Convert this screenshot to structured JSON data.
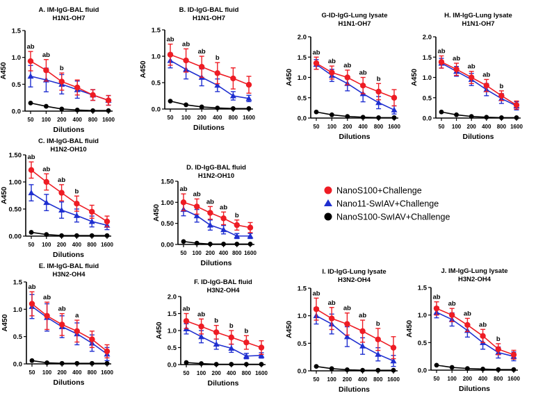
{
  "colors": {
    "red": "#ee1c24",
    "blue": "#1f2fd0",
    "black": "#000000"
  },
  "legend": {
    "entries": [
      {
        "label": "NanoS100+Challenge",
        "color": "#ee1c24",
        "marker": "circle"
      },
      {
        "label": "Nano11-SwIAV+Challenge",
        "color": "#1f2fd0",
        "marker": "triangle"
      },
      {
        "label": "NanoS100-SwIAV+Challenge",
        "color": "#000000",
        "marker": "circle"
      }
    ]
  },
  "chart_data": [
    {
      "type": "line",
      "title": "A. IM-IgG-BAL fluid",
      "subtitle": "H1N1-OH7",
      "xlabel": "Dilutions",
      "ylabel": "A450",
      "categories": [
        "50",
        "100",
        "200",
        "400",
        "800",
        "1600"
      ],
      "ylim": [
        0,
        1.5
      ],
      "yticks": [
        "0.0",
        "0.5",
        "1.0",
        "1.5"
      ],
      "series": [
        {
          "name": "NanoS100+Challenge",
          "values": [
            0.93,
            0.76,
            0.55,
            0.44,
            0.3,
            0.2
          ],
          "errors": [
            0.18,
            0.2,
            0.16,
            0.14,
            0.1,
            0.09
          ]
        },
        {
          "name": "Nano11-SwIAV+Challenge",
          "values": [
            0.65,
            0.58,
            0.5,
            0.4,
            0.3,
            0.2
          ],
          "errors": [
            0.2,
            0.22,
            0.18,
            0.16,
            0.1,
            0.09
          ]
        },
        {
          "name": "NanoS100-SwIAV+Challenge",
          "values": [
            0.15,
            0.09,
            0.04,
            0.02,
            0.01,
            0.01
          ],
          "errors": [
            0,
            0,
            0,
            0,
            0,
            0
          ]
        }
      ],
      "annotations": [
        {
          "index": 0,
          "text": "ab"
        },
        {
          "index": 1,
          "text": "ab"
        },
        {
          "index": 2,
          "text": "b"
        }
      ]
    },
    {
      "type": "line",
      "title": "B. ID-IgG-BAL fluid",
      "subtitle": "H1N1-OH7",
      "xlabel": "Dilutions",
      "ylabel": "A450",
      "categories": [
        "50",
        "100",
        "200",
        "400",
        "800",
        "1600"
      ],
      "ylim": [
        0,
        1.5
      ],
      "yticks": [
        "0.0",
        "0.5",
        "1.0",
        "1.5"
      ],
      "series": [
        {
          "name": "NanoS100+Challenge",
          "values": [
            1.03,
            0.92,
            0.8,
            0.68,
            0.58,
            0.46
          ],
          "errors": [
            0.2,
            0.22,
            0.2,
            0.2,
            0.2,
            0.16
          ]
        },
        {
          "name": "Nano11-SwIAV+Challenge",
          "values": [
            0.92,
            0.75,
            0.6,
            0.45,
            0.25,
            0.2
          ],
          "errors": [
            0.14,
            0.18,
            0.16,
            0.12,
            0.08,
            0.06
          ]
        },
        {
          "name": "NanoS100-SwIAV+Challenge",
          "values": [
            0.15,
            0.08,
            0.04,
            0.02,
            0.01,
            0.01
          ],
          "errors": [
            0,
            0,
            0,
            0,
            0,
            0
          ]
        }
      ],
      "annotations": [
        {
          "index": 0,
          "text": "ab"
        },
        {
          "index": 1,
          "text": "ab"
        },
        {
          "index": 2,
          "text": "ab"
        },
        {
          "index": 3,
          "text": "b"
        }
      ]
    },
    {
      "type": "line",
      "title": "G-ID-IgG-Lung lysate",
      "subtitle": "H1N1-OH7",
      "xlabel": "Dilutions",
      "ylabel": "A450",
      "categories": [
        "50",
        "100",
        "200",
        "400",
        "800",
        "1600"
      ],
      "ylim": [
        0,
        2.0
      ],
      "yticks": [
        "0.0",
        "0.5",
        "1.0",
        "1.5",
        "2.0"
      ],
      "series": [
        {
          "name": "NanoS100+Challenge",
          "values": [
            1.35,
            1.12,
            1.0,
            0.8,
            0.65,
            0.5
          ],
          "errors": [
            0.15,
            0.16,
            0.18,
            0.2,
            0.2,
            0.2
          ]
        },
        {
          "name": "Nano11-SwIAV+Challenge",
          "values": [
            1.32,
            1.05,
            0.85,
            0.6,
            0.38,
            0.2
          ],
          "errors": [
            0.12,
            0.15,
            0.18,
            0.2,
            0.15,
            0.1
          ]
        },
        {
          "name": "NanoS100-SwIAV+Challenge",
          "values": [
            0.15,
            0.08,
            0.04,
            0.02,
            0.01,
            0.01
          ],
          "errors": [
            0,
            0,
            0,
            0,
            0,
            0
          ]
        }
      ],
      "annotations": [
        {
          "index": 0,
          "text": "ab"
        },
        {
          "index": 1,
          "text": "ab"
        },
        {
          "index": 2,
          "text": "ab"
        },
        {
          "index": 3,
          "text": "ab"
        },
        {
          "index": 4,
          "text": "b"
        }
      ]
    },
    {
      "type": "line",
      "title": "H. IM-IgG-Lung lysate",
      "subtitle": "H1N1-OH7",
      "xlabel": "Dilutions",
      "ylabel": "A450",
      "categories": [
        "50",
        "100",
        "200",
        "400",
        "800",
        "1600"
      ],
      "ylim": [
        0,
        2.0
      ],
      "yticks": [
        "0.0",
        "0.5",
        "1.0",
        "1.5",
        "2.0"
      ],
      "series": [
        {
          "name": "NanoS100+Challenge",
          "values": [
            1.38,
            1.2,
            1.0,
            0.8,
            0.55,
            0.32
          ],
          "errors": [
            0.15,
            0.15,
            0.15,
            0.15,
            0.12,
            0.1
          ]
        },
        {
          "name": "Nano11-SwIAV+Challenge",
          "values": [
            1.35,
            1.15,
            0.95,
            0.7,
            0.48,
            0.3
          ],
          "errors": [
            0.12,
            0.12,
            0.15,
            0.15,
            0.12,
            0.1
          ]
        },
        {
          "name": "NanoS100-SwIAV+Challenge",
          "values": [
            0.15,
            0.08,
            0.04,
            0.02,
            0.01,
            0.01
          ],
          "errors": [
            0,
            0,
            0,
            0,
            0,
            0
          ]
        }
      ],
      "annotations": [
        {
          "index": 0,
          "text": "ab"
        },
        {
          "index": 1,
          "text": "ab"
        },
        {
          "index": 2,
          "text": "ab"
        },
        {
          "index": 3,
          "text": "ab"
        },
        {
          "index": 4,
          "text": "b"
        }
      ]
    },
    {
      "type": "line",
      "title": "C. IM-IgG-BAL fluid",
      "subtitle": "H1N2-OH10",
      "xlabel": "Dilutions",
      "ylabel": "A450",
      "categories": [
        "50",
        "100",
        "200",
        "400",
        "800",
        "1600"
      ],
      "ylim": [
        0,
        1.5
      ],
      "yticks": [
        "0.00",
        "0.50",
        "1.00",
        "1.50"
      ],
      "series": [
        {
          "name": "NanoS100+Challenge",
          "values": [
            1.22,
            1.0,
            0.8,
            0.6,
            0.45,
            0.27
          ],
          "errors": [
            0.15,
            0.15,
            0.15,
            0.14,
            0.12,
            0.1
          ]
        },
        {
          "name": "Nano11-SwIAV+Challenge",
          "values": [
            0.8,
            0.62,
            0.48,
            0.38,
            0.27,
            0.2
          ],
          "errors": [
            0.15,
            0.15,
            0.15,
            0.12,
            0.1,
            0.08
          ]
        },
        {
          "name": "NanoS100-SwIAV+Challenge",
          "values": [
            0.07,
            0.03,
            0.01,
            0.01,
            0.01,
            0.01
          ],
          "errors": [
            0,
            0,
            0,
            0,
            0,
            0
          ]
        }
      ],
      "annotations": [
        {
          "index": 0,
          "text": "ab"
        },
        {
          "index": 1,
          "text": "ab"
        },
        {
          "index": 2,
          "text": "ab"
        },
        {
          "index": 3,
          "text": "b"
        }
      ]
    },
    {
      "type": "line",
      "title": "D. ID-IgG-BAL fluid",
      "subtitle": "H1N2-OH10",
      "xlabel": "Dilutions",
      "ylabel": "A450",
      "categories": [
        "50",
        "100",
        "200",
        "400",
        "800",
        "1600"
      ],
      "ylim": [
        0,
        1.5
      ],
      "yticks": [
        "0.00",
        "0.50",
        "1.00",
        "1.50"
      ],
      "series": [
        {
          "name": "NanoS100+Challenge",
          "values": [
            1.0,
            0.9,
            0.75,
            0.62,
            0.46,
            0.4
          ],
          "errors": [
            0.2,
            0.18,
            0.15,
            0.15,
            0.12,
            0.12
          ]
        },
        {
          "name": "Nano11-SwIAV+Challenge",
          "values": [
            0.83,
            0.68,
            0.46,
            0.35,
            0.2,
            0.2
          ],
          "errors": [
            0.15,
            0.15,
            0.12,
            0.1,
            0.06,
            0.06
          ]
        },
        {
          "name": "NanoS100-SwIAV+Challenge",
          "values": [
            0.07,
            0.03,
            0.01,
            0.01,
            0.01,
            0.01
          ],
          "errors": [
            0,
            0,
            0,
            0,
            0,
            0
          ]
        }
      ],
      "annotations": [
        {
          "index": 0,
          "text": "ab"
        },
        {
          "index": 1,
          "text": "ab"
        },
        {
          "index": 2,
          "text": "ab"
        },
        {
          "index": 3,
          "text": "ab"
        },
        {
          "index": 4,
          "text": "b"
        }
      ]
    },
    {
      "type": "line",
      "title": "E. IM-IgG-BAL fluid",
      "subtitle": "H3N2-OH4",
      "xlabel": "Dilutions",
      "ylabel": "A450",
      "categories": [
        "50",
        "100",
        "200",
        "400",
        "800",
        "1600"
      ],
      "ylim": [
        0,
        1.5
      ],
      "yticks": [
        "0.0",
        "0.5",
        "1.0",
        "1.5"
      ],
      "series": [
        {
          "name": "NanoS100+Challenge",
          "values": [
            1.1,
            0.88,
            0.72,
            0.6,
            0.45,
            0.23
          ],
          "errors": [
            0.22,
            0.25,
            0.2,
            0.2,
            0.15,
            0.12
          ]
        },
        {
          "name": "Nano11-SwIAV+Challenge",
          "values": [
            1.05,
            0.85,
            0.68,
            0.55,
            0.38,
            0.18
          ],
          "errors": [
            0.22,
            0.25,
            0.2,
            0.2,
            0.15,
            0.12
          ]
        },
        {
          "name": "NanoS100-SwIAV+Challenge",
          "values": [
            0.06,
            0.02,
            0.01,
            0.01,
            0.01,
            0.01
          ],
          "errors": [
            0,
            0,
            0,
            0,
            0,
            0
          ]
        }
      ],
      "annotations": [
        {
          "index": 0,
          "text": "ab"
        },
        {
          "index": 1,
          "text": "ab"
        },
        {
          "index": 2,
          "text": "ab"
        },
        {
          "index": 3,
          "text": "a"
        }
      ]
    },
    {
      "type": "line",
      "title": "F. ID-IgG-BAL fluid",
      "subtitle": "H3N2-OH4",
      "xlabel": "Dilutions",
      "ylabel": "A450",
      "categories": [
        "50",
        "100",
        "200",
        "400",
        "800",
        "1600"
      ],
      "ylim": [
        0,
        2.0
      ],
      "yticks": [
        "0.0",
        "0.5",
        "1.0",
        "1.5",
        "2.0"
      ],
      "series": [
        {
          "name": "NanoS100+Challenge",
          "values": [
            1.28,
            1.12,
            0.95,
            0.8,
            0.65,
            0.5
          ],
          "errors": [
            0.22,
            0.22,
            0.2,
            0.2,
            0.2,
            0.2
          ]
        },
        {
          "name": "Nano11-SwIAV+Challenge",
          "values": [
            1.05,
            0.82,
            0.6,
            0.48,
            0.25,
            0.27
          ],
          "errors": [
            0.15,
            0.18,
            0.15,
            0.12,
            0.08,
            0.08
          ]
        },
        {
          "name": "NanoS100-SwIAV+Challenge",
          "values": [
            0.06,
            0.03,
            0.01,
            0.01,
            0.01,
            0.01
          ],
          "errors": [
            0,
            0,
            0,
            0,
            0,
            0
          ]
        }
      ],
      "annotations": [
        {
          "index": 0,
          "text": "ab"
        },
        {
          "index": 1,
          "text": "ab"
        },
        {
          "index": 2,
          "text": "b"
        },
        {
          "index": 3,
          "text": "b"
        },
        {
          "index": 4,
          "text": "b"
        }
      ]
    },
    {
      "type": "line",
      "title": "I. ID-IgG-Lung lysate",
      "subtitle": "H3N2-OH4",
      "xlabel": "Dilutions",
      "ylabel": "A450",
      "categories": [
        "50",
        "100",
        "200",
        "400",
        "800",
        "1600"
      ],
      "ylim": [
        0,
        1.5
      ],
      "yticks": [
        "0.0",
        "0.5",
        "1.0",
        "1.5"
      ],
      "series": [
        {
          "name": "NanoS100+Challenge",
          "values": [
            1.12,
            0.95,
            0.85,
            0.72,
            0.57,
            0.42
          ],
          "errors": [
            0.2,
            0.2,
            0.2,
            0.2,
            0.2,
            0.2
          ]
        },
        {
          "name": "Nano11-SwIAV+Challenge",
          "values": [
            1.0,
            0.85,
            0.62,
            0.45,
            0.3,
            0.18
          ],
          "errors": [
            0.15,
            0.18,
            0.18,
            0.15,
            0.12,
            0.1
          ]
        },
        {
          "name": "NanoS100-SwIAV+Challenge",
          "values": [
            0.08,
            0.04,
            0.02,
            0.01,
            0.01,
            0.01
          ],
          "errors": [
            0,
            0,
            0,
            0,
            0,
            0
          ]
        }
      ],
      "annotations": [
        {
          "index": 0,
          "text": "ab"
        },
        {
          "index": 1,
          "text": "ab"
        },
        {
          "index": 2,
          "text": "ab"
        },
        {
          "index": 3,
          "text": "ab"
        },
        {
          "index": 4,
          "text": "b"
        }
      ]
    },
    {
      "type": "line",
      "title": "J. IM-IgG-Lung lysate",
      "subtitle": "H3N2-OH4",
      "xlabel": "Dilutions",
      "ylabel": "A450",
      "categories": [
        "50",
        "100",
        "200",
        "400",
        "800",
        "1600"
      ],
      "ylim": [
        0,
        1.5
      ],
      "yticks": [
        "0.0",
        "0.5",
        "1.0",
        "1.5"
      ],
      "series": [
        {
          "name": "NanoS100+Challenge",
          "values": [
            1.12,
            1.0,
            0.82,
            0.62,
            0.38,
            0.28
          ],
          "errors": [
            0.12,
            0.12,
            0.12,
            0.12,
            0.1,
            0.08
          ]
        },
        {
          "name": "Nano11-SwIAV+Challenge",
          "values": [
            1.05,
            0.92,
            0.72,
            0.5,
            0.32,
            0.25
          ],
          "errors": [
            0.1,
            0.12,
            0.12,
            0.12,
            0.1,
            0.08
          ]
        },
        {
          "name": "NanoS100-SwIAV+Challenge",
          "values": [
            0.09,
            0.05,
            0.03,
            0.02,
            0.01,
            0.01
          ],
          "errors": [
            0,
            0,
            0,
            0,
            0,
            0
          ]
        }
      ],
      "annotations": [
        {
          "index": 0,
          "text": "ab"
        },
        {
          "index": 1,
          "text": "ab"
        },
        {
          "index": 2,
          "text": "ab"
        },
        {
          "index": 3,
          "text": "ab"
        },
        {
          "index": 4,
          "text": "b"
        }
      ]
    }
  ]
}
